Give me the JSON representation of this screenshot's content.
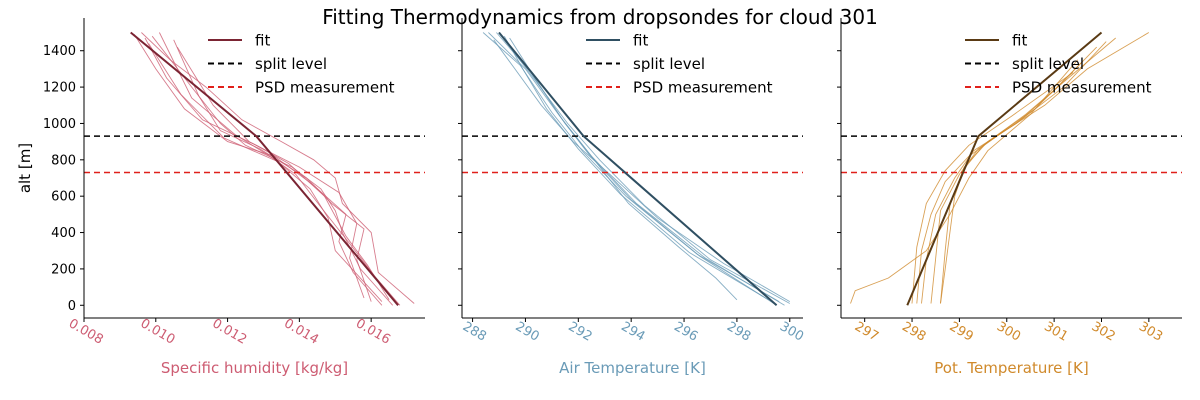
{
  "title": "Fitting Thermodynamics from dropsondes for cloud 301",
  "colors": {
    "humidity_accent": "#cd5c72",
    "humidity_fit": "#7b2433",
    "temperature_accent": "#6a9bb7",
    "temperature_fit": "#2f4f62",
    "theta_accent": "#d08a2c",
    "theta_fit": "#5a3a14",
    "split_level": "#000000",
    "psd_measurement": "#e0201b"
  },
  "chart_data": [
    {
      "type": "line",
      "panel": "humidity",
      "title": "Fitting Thermodynamics from dropsondes for cloud 301",
      "xlabel": "Specific humidity [kg/kg]",
      "ylabel": "alt [m]",
      "xlim": [
        0.008,
        0.0175
      ],
      "ylim": [
        -70,
        1580
      ],
      "xticks": [
        0.008,
        0.01,
        0.012,
        0.014,
        0.016
      ],
      "xtick_labels": [
        "0.008",
        "0.010",
        "0.012",
        "0.014",
        "0.016"
      ],
      "yticks": [
        0,
        200,
        400,
        600,
        800,
        1000,
        1200,
        1400
      ],
      "ytick_labels": [
        "0",
        "200",
        "400",
        "600",
        "800",
        "1000",
        "1200",
        "1400"
      ],
      "legend": {
        "location": "top-right",
        "entries": [
          "fit",
          "split level",
          "PSD measurement"
        ]
      },
      "split_level": 930,
      "psd_measurement": 730,
      "fit": {
        "name": "fit",
        "x": [
          0.01675,
          0.0128,
          0.0093
        ],
        "y": [
          0,
          930,
          1500
        ]
      },
      "samples": [
        {
          "x": [
            0.0172,
            0.0162,
            0.016,
            0.0152,
            0.015,
            0.0144,
            0.0135,
            0.0124,
            0.0114,
            0.0104,
            0.0096
          ],
          "y": [
            10,
            180,
            400,
            560,
            700,
            800,
            900,
            1020,
            1200,
            1350,
            1500
          ]
        },
        {
          "x": [
            0.0166,
            0.0157,
            0.0152,
            0.015,
            0.0146,
            0.0138,
            0.0125,
            0.0118,
            0.011,
            0.0099
          ],
          "y": [
            0,
            200,
            400,
            520,
            640,
            760,
            880,
            1000,
            1200,
            1480
          ]
        },
        {
          "x": [
            0.0163,
            0.0155,
            0.0151,
            0.0153,
            0.0144,
            0.0133,
            0.012,
            0.0108,
            0.01,
            0.0094
          ],
          "y": [
            0,
            180,
            350,
            500,
            660,
            820,
            900,
            1080,
            1300,
            1490
          ]
        },
        {
          "x": [
            0.016,
            0.0156,
            0.0158,
            0.0149,
            0.0142,
            0.0129,
            0.0118,
            0.0112,
            0.0105
          ],
          "y": [
            20,
            250,
            420,
            560,
            700,
            860,
            960,
            1150,
            1460
          ]
        },
        {
          "x": [
            0.0165,
            0.0159,
            0.0153,
            0.0147,
            0.0137,
            0.0128,
            0.0113,
            0.0103,
            0.0097
          ],
          "y": [
            30,
            220,
            380,
            600,
            780,
            880,
            1020,
            1250,
            1470
          ]
        },
        {
          "x": [
            0.0158,
            0.0154,
            0.0156,
            0.0151,
            0.014,
            0.0126,
            0.0116,
            0.0106
          ],
          "y": [
            40,
            260,
            450,
            620,
            760,
            900,
            1100,
            1420
          ]
        },
        {
          "x": [
            0.0168,
            0.0161,
            0.0154,
            0.0146,
            0.0139,
            0.0131,
            0.0122,
            0.011,
            0.0101
          ],
          "y": [
            0,
            160,
            340,
            540,
            720,
            830,
            940,
            1140,
            1500
          ]
        },
        {
          "x": [
            0.0163,
            0.015,
            0.0148,
            0.0143,
            0.0134,
            0.0119,
            0.0107,
            0.0098
          ],
          "y": [
            20,
            300,
            480,
            640,
            790,
            920,
            1160,
            1440
          ]
        }
      ]
    },
    {
      "type": "line",
      "panel": "temperature",
      "xlabel": "Air Temperature [K]",
      "ylabel": "",
      "xlim": [
        287.6,
        300.5
      ],
      "ylim": [
        -70,
        1580
      ],
      "xticks": [
        288,
        290,
        292,
        294,
        296,
        298,
        300
      ],
      "xtick_labels": [
        "288",
        "290",
        "292",
        "294",
        "296",
        "298",
        "300"
      ],
      "legend": {
        "location": "top-right",
        "entries": [
          "fit",
          "split level",
          "PSD measurement"
        ]
      },
      "split_level": 930,
      "psd_measurement": 730,
      "fit": {
        "name": "fit",
        "x": [
          299.5,
          292.2,
          289.0
        ],
        "y": [
          0,
          930,
          1500
        ]
      },
      "samples": [
        {
          "x": [
            300.0,
            297.0,
            294.5,
            292.8,
            291.6,
            290.3,
            289.0
          ],
          "y": [
            10,
            250,
            550,
            800,
            1000,
            1250,
            1500
          ]
        },
        {
          "x": [
            299.8,
            296.8,
            294.2,
            292.5,
            291.3,
            290.0,
            288.6
          ],
          "y": [
            0,
            260,
            560,
            820,
            1040,
            1300,
            1500
          ]
        },
        {
          "x": [
            299.6,
            296.5,
            293.8,
            292.2,
            291.0,
            289.8,
            288.4
          ],
          "y": [
            20,
            280,
            600,
            840,
            1060,
            1320,
            1500
          ]
        },
        {
          "x": [
            299.2,
            296.2,
            293.6,
            292.0,
            290.8,
            289.9,
            289.2
          ],
          "y": [
            30,
            290,
            610,
            860,
            1080,
            1300,
            1480
          ]
        },
        {
          "x": [
            298.0,
            297.2,
            295.8,
            293.9,
            292.6,
            291.5,
            290.2,
            288.9
          ],
          "y": [
            30,
            150,
            320,
            560,
            800,
            1000,
            1280,
            1500
          ]
        },
        {
          "x": [
            300.0,
            297.5,
            295.0,
            293.2,
            291.8,
            290.6,
            289.6,
            288.8
          ],
          "y": [
            20,
            230,
            480,
            720,
            900,
            1100,
            1300,
            1460
          ]
        },
        {
          "x": [
            299.4,
            296.6,
            294.0,
            292.4,
            291.4,
            290.4,
            289.4
          ],
          "y": [
            10,
            270,
            580,
            830,
            1020,
            1240,
            1470
          ]
        }
      ]
    },
    {
      "type": "line",
      "panel": "theta",
      "xlabel": "Pot. Temperature [K]",
      "ylabel": "",
      "xlim": [
        296.5,
        303.7
      ],
      "ylim": [
        -70,
        1580
      ],
      "xticks": [
        297,
        298,
        299,
        300,
        301,
        302,
        303
      ],
      "xtick_labels": [
        "297",
        "298",
        "299",
        "300",
        "301",
        "302",
        "303"
      ],
      "legend": {
        "location": "top-right",
        "entries": [
          "fit",
          "split level",
          "PSD measurement"
        ]
      },
      "split_level": 930,
      "psd_measurement": 730,
      "fit": {
        "name": "fit",
        "x": [
          297.9,
          299.4,
          302.0
        ],
        "y": [
          0,
          930,
          1500
        ]
      },
      "samples": [
        {
          "x": [
            296.7,
            296.8,
            297.5,
            298.3,
            298.8,
            299.2,
            299.6,
            300.5,
            301.5
          ],
          "y": [
            10,
            80,
            150,
            300,
            500,
            700,
            850,
            1050,
            1350
          ]
        },
        {
          "x": [
            298.6,
            298.7,
            298.8,
            298.9,
            299.1,
            299.5,
            300.4,
            301.3,
            302.3
          ],
          "y": [
            10,
            200,
            400,
            600,
            750,
            880,
            1050,
            1250,
            1470
          ]
        },
        {
          "x": [
            298.2,
            298.3,
            298.5,
            298.9,
            299.3,
            300.2,
            301.0,
            301.9
          ],
          "y": [
            10,
            250,
            500,
            700,
            850,
            1000,
            1180,
            1420
          ]
        },
        {
          "x": [
            298.1,
            298.2,
            298.4,
            298.7,
            299.2,
            299.9,
            300.8,
            301.7,
            303.0
          ],
          "y": [
            10,
            300,
            500,
            680,
            820,
            950,
            1100,
            1300,
            1500
          ]
        },
        {
          "x": [
            298.6,
            298.7,
            298.8,
            299.1,
            299.6,
            300.6,
            301.6
          ],
          "y": [
            10,
            300,
            550,
            760,
            900,
            1080,
            1340
          ]
        },
        {
          "x": [
            298.4,
            298.5,
            298.6,
            299.0,
            299.4,
            300.3,
            301.2,
            302.1
          ],
          "y": [
            10,
            260,
            520,
            720,
            860,
            1020,
            1200,
            1450
          ]
        },
        {
          "x": [
            298.0,
            298.1,
            298.3,
            298.7,
            299.2,
            300.1,
            301.4
          ],
          "y": [
            10,
            320,
            560,
            740,
            880,
            1040,
            1280
          ]
        }
      ]
    }
  ]
}
